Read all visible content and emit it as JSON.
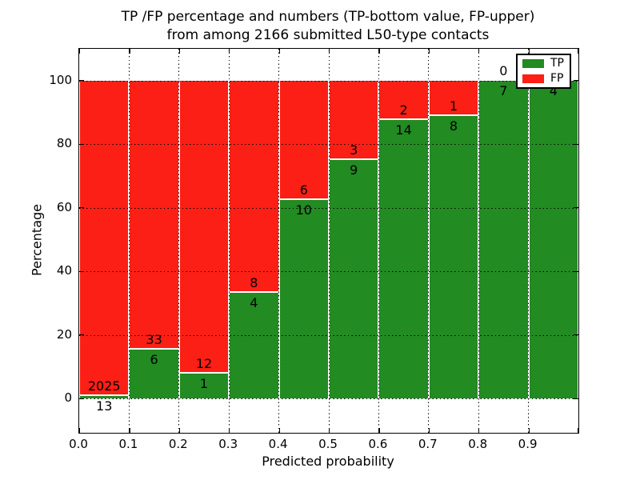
{
  "figure": {
    "title_line1": "TP /FP percentage and numbers (TP-bottom value, FP-upper)",
    "title_line2": "from among 2166 submitted L50-type contacts",
    "xlabel": "Predicted probability",
    "ylabel": "Percentage"
  },
  "legend": {
    "items": [
      {
        "label": "TP",
        "color": "#228b22"
      },
      {
        "label": "FP",
        "color": "#fb1f15"
      }
    ]
  },
  "chart_data": {
    "type": "bar",
    "stacked": true,
    "orientation": "vertical",
    "title": "TP /FP percentage and numbers (TP-bottom value, FP-upper) from among 2166 submitted L50-type contacts",
    "xlabel": "Predicted probability",
    "ylabel": "Percentage",
    "total_contacts": 2166,
    "bin_width": 0.1,
    "bin_starts": [
      0.0,
      0.1,
      0.2,
      0.3,
      0.4,
      0.5,
      0.6,
      0.7,
      0.8,
      0.9
    ],
    "xtick_labels": [
      "0.0",
      "0.1",
      "0.2",
      "0.3",
      "0.4",
      "0.5",
      "0.6",
      "0.7",
      "0.8",
      "0.9"
    ],
    "ytick_values": [
      0,
      20,
      40,
      60,
      80,
      100
    ],
    "xlim": [
      0.0,
      1.0
    ],
    "ylim": [
      -10,
      110
    ],
    "grid": {
      "on": true,
      "style": "dotted"
    },
    "colors": {
      "TP": "#228b22",
      "FP": "#fb1f15"
    },
    "series": [
      {
        "name": "TP",
        "position": "bottom",
        "counts": [
          13,
          6,
          1,
          4,
          10,
          9,
          14,
          8,
          7,
          4
        ]
      },
      {
        "name": "FP",
        "position": "top",
        "counts": [
          2025,
          33,
          12,
          8,
          6,
          3,
          2,
          1,
          0,
          0
        ]
      }
    ],
    "tp_percent": [
      0.64,
      15.38,
      7.69,
      33.33,
      62.5,
      75.0,
      87.5,
      88.89,
      100.0,
      100.0
    ],
    "legend_position": "upper right"
  }
}
